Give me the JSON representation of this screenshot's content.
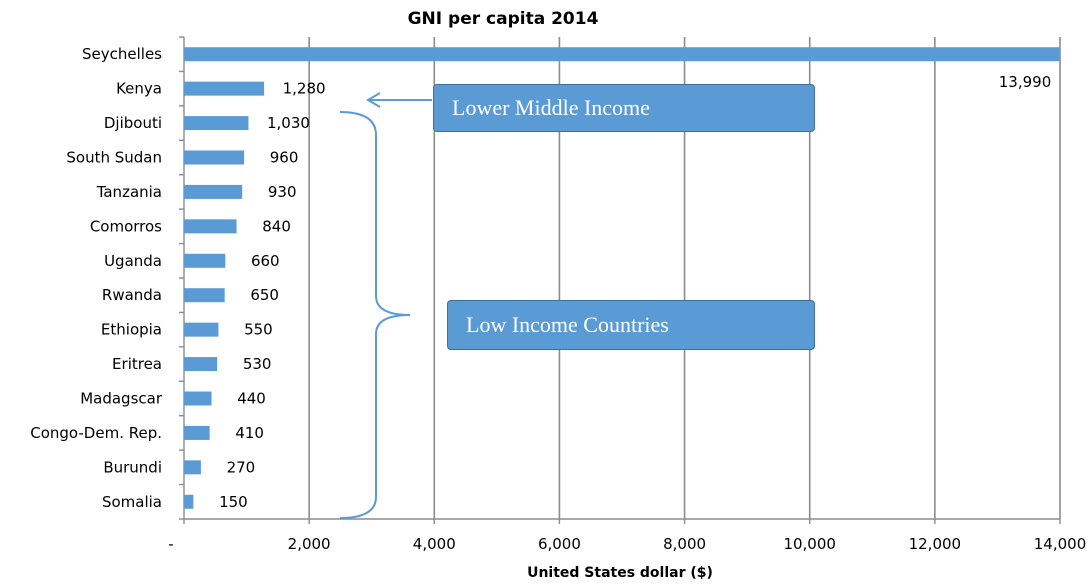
{
  "chart_data": {
    "type": "bar",
    "orientation": "horizontal",
    "title": "GNI per capita 2014",
    "xlabel": "United States dollar  ($)",
    "ylabel": "",
    "xlim": [
      0,
      14000
    ],
    "x_ticks": [
      0,
      2000,
      4000,
      6000,
      8000,
      10000,
      12000,
      14000
    ],
    "x_tick_labels": [
      "-",
      "2,000",
      "4,000",
      "6,000",
      "8,000",
      "10,000",
      "12,000",
      "14,000"
    ],
    "grid": "vertical",
    "bar_color": "#5b9bd5",
    "categories": [
      "Seychelles",
      "Kenya",
      "Djibouti",
      "South Sudan",
      "Tanzania",
      "Comorros",
      "Uganda",
      "Rwanda",
      "Ethiopia",
      "Eritrea",
      "Madagscar",
      "Congo-Dem. Rep.",
      "Burundi",
      "Somalia"
    ],
    "values": [
      13990,
      1280,
      1030,
      960,
      930,
      840,
      660,
      650,
      550,
      530,
      440,
      410,
      270,
      150
    ],
    "value_labels": [
      "13,990",
      "1,280",
      "1,030",
      "960",
      "930",
      "840",
      "660",
      "650",
      "550",
      "530",
      "440",
      "410",
      "270",
      "150"
    ],
    "annotations": [
      {
        "text": "Lower Middle Income",
        "points_to": "Kenya"
      },
      {
        "text": "Low Income Countries",
        "groups": [
          "Djibouti",
          "South Sudan",
          "Tanzania",
          "Comorros",
          "Uganda",
          "Rwanda",
          "Ethiopia",
          "Eritrea",
          "Madagscar",
          "Congo-Dem. Rep.",
          "Burundi",
          "Somalia"
        ]
      }
    ]
  }
}
